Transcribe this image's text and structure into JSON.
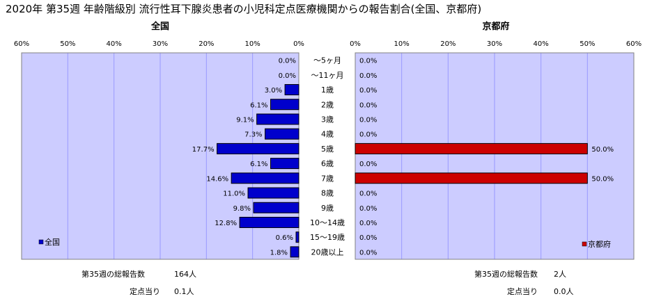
{
  "title": "2020年 第35週 年齢階級別 流行性耳下腺炎患者の小児科定点医療機関からの報告割合(全国、京都府)",
  "colors": {
    "plot_bg": "#ccccff",
    "grid": "#9999ff",
    "national_bar": "#0000cc",
    "kyoto_bar": "#cc0000"
  },
  "chart_data": [
    {
      "type": "bar",
      "orientation": "horizontal",
      "direction": "right-to-left",
      "subtitle": "全国",
      "series": [
        {
          "name": "全国",
          "values": [
            0.0,
            0.0,
            3.0,
            6.1,
            9.1,
            7.3,
            17.7,
            6.1,
            14.6,
            11.0,
            9.8,
            12.8,
            0.6,
            1.8
          ]
        }
      ],
      "categories": [
        "～5ヶ月",
        "～11ヶ月",
        "1歳",
        "2歳",
        "3歳",
        "4歳",
        "5歳",
        "6歳",
        "7歳",
        "8歳",
        "9歳",
        "10～14歳",
        "15～19歳",
        "20歳以上"
      ],
      "value_labels": [
        "0.0%",
        "0.0%",
        "3.0%",
        "6.1%",
        "9.1%",
        "7.3%",
        "17.7%",
        "6.1%",
        "14.6%",
        "11.0%",
        "9.8%",
        "12.8%",
        "0.6%",
        "1.8%"
      ],
      "xlim": [
        0,
        60
      ],
      "ticks": [
        "0%",
        "10%",
        "20%",
        "30%",
        "40%",
        "50%",
        "60%"
      ],
      "grid": true,
      "legend": "bottom-left",
      "legend_label": "全国"
    },
    {
      "type": "bar",
      "orientation": "horizontal",
      "direction": "left-to-right",
      "subtitle": "京都府",
      "series": [
        {
          "name": "京都府",
          "values": [
            0.0,
            0.0,
            0.0,
            0.0,
            0.0,
            0.0,
            50.0,
            0.0,
            50.0,
            0.0,
            0.0,
            0.0,
            0.0,
            0.0
          ]
        }
      ],
      "value_labels": [
        "0.0%",
        "0.0%",
        "0.0%",
        "0.0%",
        "0.0%",
        "0.0%",
        "50.0%",
        "0.0%",
        "50.0%",
        "0.0%",
        "0.0%",
        "0.0%",
        "0.0%",
        "0.0%"
      ],
      "xlim": [
        0,
        60
      ],
      "ticks": [
        "0%",
        "10%",
        "20%",
        "30%",
        "40%",
        "50%",
        "60%"
      ],
      "grid": true,
      "legend": "bottom-right",
      "legend_label": "京都府"
    }
  ],
  "summary": {
    "national": {
      "total_label": "第35週の総報告数",
      "total_value": "164人",
      "per_label": "定点当り",
      "per_value": "0.1人"
    },
    "kyoto": {
      "total_label": "第35週の総報告数",
      "total_value": "2人",
      "per_label": "定点当り",
      "per_value": "0.0人"
    }
  }
}
